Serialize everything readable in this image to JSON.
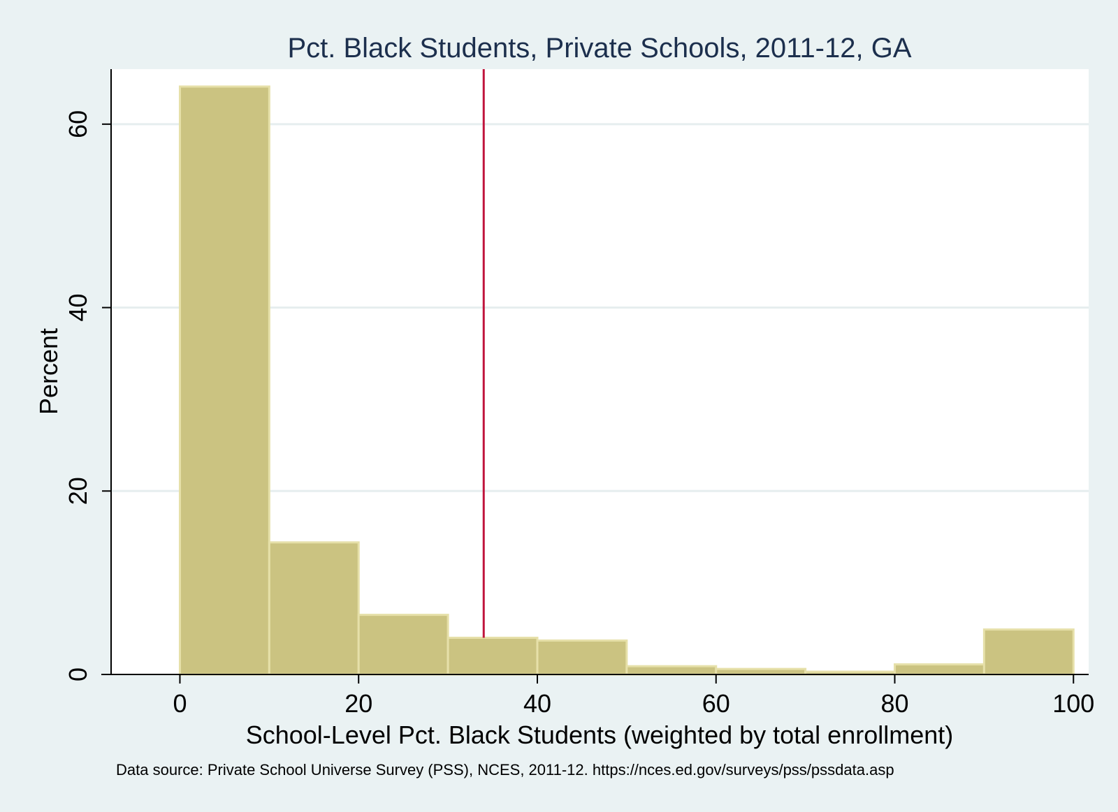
{
  "chart_data": {
    "type": "bar",
    "subtype": "histogram",
    "title": "Pct. Black Students, Private Schools, 2011-12, GA",
    "xlabel": "School-Level Pct. Black Students (weighted by total enrollment)",
    "ylabel": "Percent",
    "note": "Data source: Private School Universe Survey (PSS), NCES, 2011-12. https://nces.ed.gov/surveys/pss/pssdata.asp",
    "xlim": [
      -7.7,
      101.7
    ],
    "ylim": [
      0,
      66
    ],
    "x_ticks": [
      {
        "value": 0,
        "label": "0"
      },
      {
        "value": 20,
        "label": "20"
      },
      {
        "value": 40,
        "label": "40"
      },
      {
        "value": 60,
        "label": "60"
      },
      {
        "value": 80,
        "label": "80"
      },
      {
        "value": 100,
        "label": "100"
      }
    ],
    "y_ticks": [
      {
        "value": 0,
        "label": "0"
      },
      {
        "value": 20,
        "label": "20"
      },
      {
        "value": 40,
        "label": "40"
      },
      {
        "value": 60,
        "label": "60"
      }
    ],
    "grid": true,
    "bins": [
      {
        "start": 0,
        "end": 10,
        "value": 64.1
      },
      {
        "start": 10,
        "end": 20,
        "value": 14.4
      },
      {
        "start": 20,
        "end": 30,
        "value": 6.5
      },
      {
        "start": 30,
        "end": 40,
        "value": 4.0
      },
      {
        "start": 40,
        "end": 50,
        "value": 3.7
      },
      {
        "start": 50,
        "end": 60,
        "value": 0.9
      },
      {
        "start": 60,
        "end": 70,
        "value": 0.6
      },
      {
        "start": 70,
        "end": 80,
        "value": 0.3
      },
      {
        "start": 80,
        "end": 90,
        "value": 1.1
      },
      {
        "start": 90,
        "end": 100,
        "value": 4.9
      }
    ],
    "reference_line": {
      "x": 34,
      "orientation": "vertical"
    },
    "colors": {
      "background": "#eaf2f3",
      "plot_area": "#ffffff",
      "bar_fill": "#cbc381",
      "bar_edge": "#e6e0a9",
      "grid": "#e6eeef",
      "reference_line": "#c0143c",
      "title": "#1c2f4d"
    }
  }
}
